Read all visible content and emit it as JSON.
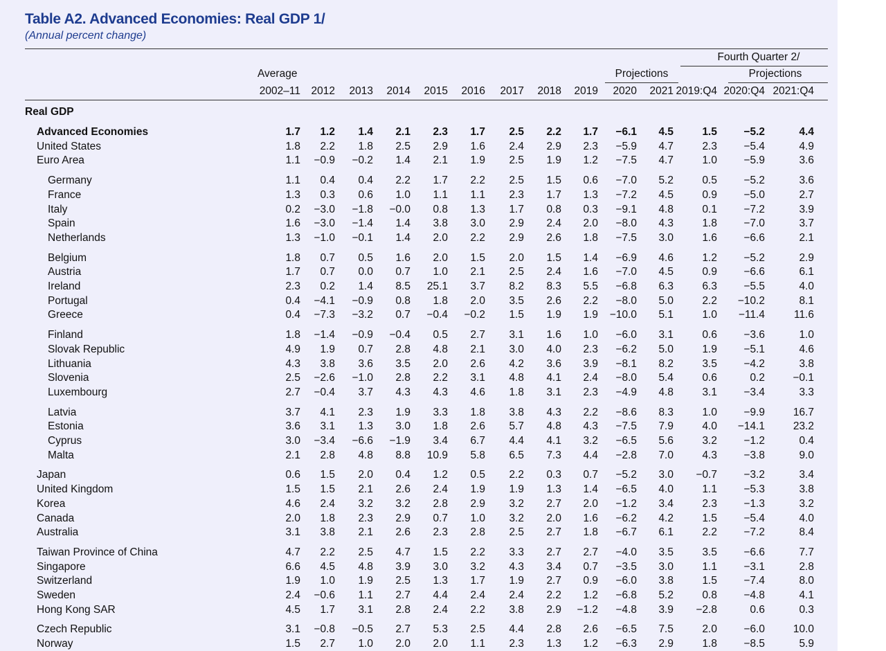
{
  "header": {
    "title": "Table A2. Advanced Economies: Real GDP 1/",
    "subtitle": "(Annual percent change)",
    "fourth_quarter": "Fourth Quarter 2/",
    "projections": [
      "Projections",
      "Projections"
    ],
    "average": "Average",
    "columns": [
      "2002–11",
      "2012",
      "2013",
      "2014",
      "2015",
      "2016",
      "2017",
      "2018",
      "2019",
      "2020",
      "2021",
      "2019:Q4",
      "2020:Q4",
      "2021:Q4"
    ]
  },
  "table": {
    "section": "Real GDP",
    "groups": [
      [
        {
          "name": "Advanced Economies",
          "values": [
            "1.7",
            "1.2",
            "1.4",
            "2.1",
            "2.3",
            "1.7",
            "2.5",
            "2.2",
            "1.7",
            "−6.1",
            "4.5",
            "1.5",
            "−5.2",
            "4.4"
          ]
        },
        {
          "name": "United States",
          "values": [
            "1.8",
            "2.2",
            "1.8",
            "2.5",
            "2.9",
            "1.6",
            "2.4",
            "2.9",
            "2.3",
            "−5.9",
            "4.7",
            "2.3",
            "−5.4",
            "4.9"
          ]
        },
        {
          "name": "Euro Area",
          "values": [
            "1.1",
            "−0.9",
            "−0.2",
            "1.4",
            "2.1",
            "1.9",
            "2.5",
            "1.9",
            "1.2",
            "−7.5",
            "4.7",
            "1.0",
            "−5.9",
            "3.6"
          ]
        }
      ],
      [
        {
          "name": "Germany",
          "values": [
            "1.1",
            "0.4",
            "0.4",
            "2.2",
            "1.7",
            "2.2",
            "2.5",
            "1.5",
            "0.6",
            "−7.0",
            "5.2",
            "0.5",
            "−5.2",
            "3.6"
          ]
        },
        {
          "name": "France",
          "values": [
            "1.3",
            "0.3",
            "0.6",
            "1.0",
            "1.1",
            "1.1",
            "2.3",
            "1.7",
            "1.3",
            "−7.2",
            "4.5",
            "0.9",
            "−5.0",
            "2.7"
          ]
        },
        {
          "name": "Italy",
          "values": [
            "0.2",
            "−3.0",
            "−1.8",
            "−0.0",
            "0.8",
            "1.3",
            "1.7",
            "0.8",
            "0.3",
            "−9.1",
            "4.8",
            "0.1",
            "−7.2",
            "3.9"
          ]
        },
        {
          "name": "Spain",
          "values": [
            "1.6",
            "−3.0",
            "−1.4",
            "1.4",
            "3.8",
            "3.0",
            "2.9",
            "2.4",
            "2.0",
            "−8.0",
            "4.3",
            "1.8",
            "−7.0",
            "3.7"
          ]
        },
        {
          "name": "Netherlands",
          "values": [
            "1.3",
            "−1.0",
            "−0.1",
            "1.4",
            "2.0",
            "2.2",
            "2.9",
            "2.6",
            "1.8",
            "−7.5",
            "3.0",
            "1.6",
            "−6.6",
            "2.1"
          ]
        }
      ],
      [
        {
          "name": "Belgium",
          "values": [
            "1.8",
            "0.7",
            "0.5",
            "1.6",
            "2.0",
            "1.5",
            "2.0",
            "1.5",
            "1.4",
            "−6.9",
            "4.6",
            "1.2",
            "−5.2",
            "2.9"
          ]
        },
        {
          "name": "Austria",
          "values": [
            "1.7",
            "0.7",
            "0.0",
            "0.7",
            "1.0",
            "2.1",
            "2.5",
            "2.4",
            "1.6",
            "−7.0",
            "4.5",
            "0.9",
            "−6.6",
            "6.1"
          ]
        },
        {
          "name": "Ireland",
          "values": [
            "2.3",
            "0.2",
            "1.4",
            "8.5",
            "25.1",
            "3.7",
            "8.2",
            "8.3",
            "5.5",
            "−6.8",
            "6.3",
            "6.3",
            "−5.5",
            "4.0"
          ]
        },
        {
          "name": "Portugal",
          "values": [
            "0.4",
            "−4.1",
            "−0.9",
            "0.8",
            "1.8",
            "2.0",
            "3.5",
            "2.6",
            "2.2",
            "−8.0",
            "5.0",
            "2.2",
            "−10.2",
            "8.1"
          ]
        },
        {
          "name": "Greece",
          "values": [
            "0.4",
            "−7.3",
            "−3.2",
            "0.7",
            "−0.4",
            "−0.2",
            "1.5",
            "1.9",
            "1.9",
            "−10.0",
            "5.1",
            "1.0",
            "−11.4",
            "11.6"
          ]
        }
      ],
      [
        {
          "name": "Finland",
          "values": [
            "1.8",
            "−1.4",
            "−0.9",
            "−0.4",
            "0.5",
            "2.7",
            "3.1",
            "1.6",
            "1.0",
            "−6.0",
            "3.1",
            "0.6",
            "−3.6",
            "1.0"
          ]
        },
        {
          "name": "Slovak Republic",
          "values": [
            "4.9",
            "1.9",
            "0.7",
            "2.8",
            "4.8",
            "2.1",
            "3.0",
            "4.0",
            "2.3",
            "−6.2",
            "5.0",
            "1.9",
            "−5.1",
            "4.6"
          ]
        },
        {
          "name": "Lithuania",
          "values": [
            "4.3",
            "3.8",
            "3.6",
            "3.5",
            "2.0",
            "2.6",
            "4.2",
            "3.6",
            "3.9",
            "−8.1",
            "8.2",
            "3.5",
            "−4.2",
            "3.8"
          ]
        },
        {
          "name": "Slovenia",
          "values": [
            "2.5",
            "−2.6",
            "−1.0",
            "2.8",
            "2.2",
            "3.1",
            "4.8",
            "4.1",
            "2.4",
            "−8.0",
            "5.4",
            "0.6",
            "0.2",
            "−0.1"
          ]
        },
        {
          "name": "Luxembourg",
          "values": [
            "2.7",
            "−0.4",
            "3.7",
            "4.3",
            "4.3",
            "4.6",
            "1.8",
            "3.1",
            "2.3",
            "−4.9",
            "4.8",
            "3.1",
            "−3.4",
            "3.3"
          ]
        }
      ],
      [
        {
          "name": "Latvia",
          "values": [
            "3.7",
            "4.1",
            "2.3",
            "1.9",
            "3.3",
            "1.8",
            "3.8",
            "4.3",
            "2.2",
            "−8.6",
            "8.3",
            "1.0",
            "−9.9",
            "16.7"
          ]
        },
        {
          "name": "Estonia",
          "values": [
            "3.6",
            "3.1",
            "1.3",
            "3.0",
            "1.8",
            "2.6",
            "5.7",
            "4.8",
            "4.3",
            "−7.5",
            "7.9",
            "4.0",
            "−14.1",
            "23.2"
          ]
        },
        {
          "name": "Cyprus",
          "values": [
            "3.0",
            "−3.4",
            "−6.6",
            "−1.9",
            "3.4",
            "6.7",
            "4.4",
            "4.1",
            "3.2",
            "−6.5",
            "5.6",
            "3.2",
            "−1.2",
            "0.4"
          ]
        },
        {
          "name": "Malta",
          "values": [
            "2.1",
            "2.8",
            "4.8",
            "8.8",
            "10.9",
            "5.8",
            "6.5",
            "7.3",
            "4.4",
            "−2.8",
            "7.0",
            "4.3",
            "−3.8",
            "9.0"
          ]
        }
      ],
      [
        {
          "name": "Japan",
          "values": [
            "0.6",
            "1.5",
            "2.0",
            "0.4",
            "1.2",
            "0.5",
            "2.2",
            "0.3",
            "0.7",
            "−5.2",
            "3.0",
            "−0.7",
            "−3.2",
            "3.4"
          ]
        },
        {
          "name": "United Kingdom",
          "values": [
            "1.5",
            "1.5",
            "2.1",
            "2.6",
            "2.4",
            "1.9",
            "1.9",
            "1.3",
            "1.4",
            "−6.5",
            "4.0",
            "1.1",
            "−5.3",
            "3.8"
          ]
        },
        {
          "name": "Korea",
          "values": [
            "4.6",
            "2.4",
            "3.2",
            "3.2",
            "2.8",
            "2.9",
            "3.2",
            "2.7",
            "2.0",
            "−1.2",
            "3.4",
            "2.3",
            "−1.3",
            "3.2"
          ]
        },
        {
          "name": "Canada",
          "values": [
            "2.0",
            "1.8",
            "2.3",
            "2.9",
            "0.7",
            "1.0",
            "3.2",
            "2.0",
            "1.6",
            "−6.2",
            "4.2",
            "1.5",
            "−5.4",
            "4.0"
          ]
        },
        {
          "name": "Australia",
          "values": [
            "3.1",
            "3.8",
            "2.1",
            "2.6",
            "2.3",
            "2.8",
            "2.5",
            "2.7",
            "1.8",
            "−6.7",
            "6.1",
            "2.2",
            "−7.2",
            "8.4"
          ]
        }
      ],
      [
        {
          "name": "Taiwan Province of China",
          "values": [
            "4.7",
            "2.2",
            "2.5",
            "4.7",
            "1.5",
            "2.2",
            "3.3",
            "2.7",
            "2.7",
            "−4.0",
            "3.5",
            "3.5",
            "−6.6",
            "7.7"
          ]
        },
        {
          "name": "Singapore",
          "values": [
            "6.6",
            "4.5",
            "4.8",
            "3.9",
            "3.0",
            "3.2",
            "4.3",
            "3.4",
            "0.7",
            "−3.5",
            "3.0",
            "1.1",
            "−3.1",
            "2.8"
          ]
        },
        {
          "name": "Switzerland",
          "values": [
            "1.9",
            "1.0",
            "1.9",
            "2.5",
            "1.3",
            "1.7",
            "1.9",
            "2.7",
            "0.9",
            "−6.0",
            "3.8",
            "1.5",
            "−7.4",
            "8.0"
          ]
        },
        {
          "name": "Sweden",
          "values": [
            "2.4",
            "−0.6",
            "1.1",
            "2.7",
            "4.4",
            "2.4",
            "2.4",
            "2.2",
            "1.2",
            "−6.8",
            "5.2",
            "0.8",
            "−4.8",
            "4.1"
          ]
        },
        {
          "name": "Hong Kong SAR",
          "values": [
            "4.5",
            "1.7",
            "3.1",
            "2.8",
            "2.4",
            "2.2",
            "3.8",
            "2.9",
            "−1.2",
            "−4.8",
            "3.9",
            "−2.8",
            "0.6",
            "0.3"
          ]
        }
      ],
      [
        {
          "name": "Czech Republic",
          "values": [
            "3.1",
            "−0.8",
            "−0.5",
            "2.7",
            "5.3",
            "2.5",
            "4.4",
            "2.8",
            "2.6",
            "−6.5",
            "7.5",
            "2.0",
            "−6.0",
            "10.0"
          ]
        },
        {
          "name": "Norway",
          "values": [
            "1.5",
            "2.7",
            "1.0",
            "2.0",
            "2.0",
            "1.1",
            "2.3",
            "1.3",
            "1.2",
            "−6.3",
            "2.9",
            "1.8",
            "−8.5",
            "5.9"
          ]
        }
      ]
    ]
  }
}
